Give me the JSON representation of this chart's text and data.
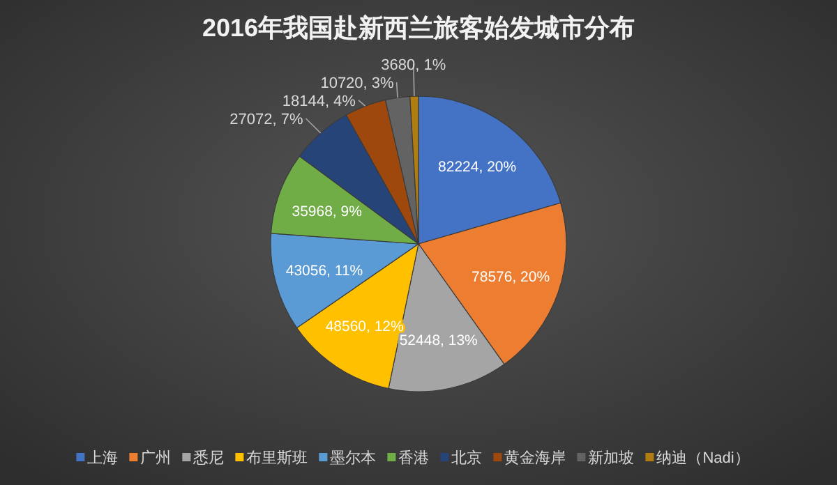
{
  "chart_data": {
    "type": "pie",
    "title": "2016年我国赴新西兰旅客始发城市分布",
    "categories": [
      "上海",
      "广州",
      "悉尼",
      "布里斯班",
      "墨尔本",
      "香港",
      "北京",
      "黄金海岸",
      "新加坡",
      "纳迪（Nadi）"
    ],
    "values": [
      82224,
      78576,
      52448,
      48560,
      43056,
      35968,
      27072,
      18144,
      10720,
      3680
    ],
    "value_labels": [
      "82224, 20%",
      "78576, 20%",
      "52448, 13%",
      "48560, 12%",
      "43056, 11%",
      "35968, 9%",
      "27072, 7%",
      "18144, 4%",
      "10720, 3%",
      "3680, 1%"
    ],
    "colors": [
      "#4472c4",
      "#ed7d31",
      "#a5a5a5",
      "#ffc000",
      "#5b9bd5",
      "#70ad47",
      "#264478",
      "#9e480e",
      "#636363",
      "#b07d10"
    ],
    "legend": "bottom"
  }
}
